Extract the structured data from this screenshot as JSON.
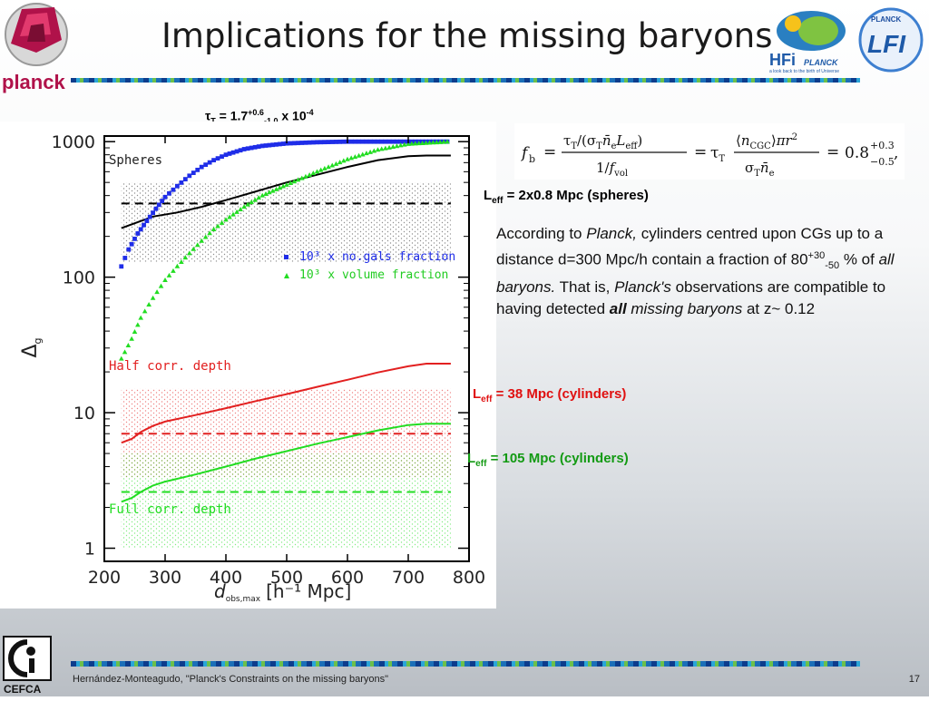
{
  "slide": {
    "title": "Implications for the missing baryons",
    "footer": "Hernández-Monteagudo, \"Planck's Constraints on the missing baryons\"",
    "page_number": "17"
  },
  "logos": {
    "planck": "planck",
    "hfi": "HFi",
    "hfi_sub": "PLANCK",
    "hfi_tagline": "a look back to the birth of Universe",
    "lfi": "LFI",
    "lfi_top": "PLANCK",
    "cefca": "CEFCA"
  },
  "tau": {
    "prefix": "τ",
    "prefix_sub": "T",
    "eq": " = 1.7",
    "sup": "+0.6",
    "sub": "-1.0",
    "suffix": " x 10",
    "exp": "-4"
  },
  "formula": {
    "lhs": "f",
    "lhs_sub": "b",
    "result": "0.8",
    "result_sup": "+0.3",
    "result_sub": "−0.5"
  },
  "labels": {
    "leff_spheres": {
      "L": "L",
      "sub": "eff",
      "text": " = 2x0.8 Mpc (spheres)"
    },
    "leff_half": {
      "L": "L",
      "sub": "eff",
      "text": " = 38 Mpc (cylinders)"
    },
    "leff_full": {
      "L": "L",
      "sub": "eff",
      "text": " = 105 Mpc (cylinders)"
    }
  },
  "paragraph": {
    "t1": "According to ",
    "t2": "Planck,",
    "t3": " cylinders centred upon CGs up to a distance d=300 Mpc/h contain a fraction of 80",
    "sup": "+30",
    "sub": "-50",
    "t4": " % of ",
    "t5": "all baryons.",
    "t6": " That is, ",
    "t7": "Planck's",
    "t8": " observations are compatible to having detected ",
    "t9": "all",
    "t10": " missing baryons",
    "t11": " at z~ 0.12"
  },
  "chart_data": {
    "type": "line",
    "ylabel": "Δ",
    "ylabel_sub": "g",
    "xlabel_d": "d",
    "xlabel_sub": "obs,max",
    "xlabel_unit": "[h⁻¹ Mpc]",
    "xlim": [
      200,
      800
    ],
    "ylim": [
      0.8,
      1100
    ],
    "y_scale": "log",
    "x_ticks": [
      200,
      300,
      400,
      500,
      600,
      700,
      800
    ],
    "y_ticks": [
      {
        "v": 1,
        "label": "1"
      },
      {
        "v": 10,
        "label": "10"
      },
      {
        "v": 100,
        "label": "100"
      },
      {
        "v": 1000,
        "label": "1000"
      }
    ],
    "annotations": {
      "spheres": "Spheres",
      "half": "Half corr. depth",
      "full": "Full corr. depth",
      "legend_blue": "10³ x no.gals fraction",
      "legend_green": "10³ x volume fraction"
    },
    "colors": {
      "blue": "#1f2de8",
      "green": "#22dd22",
      "red": "#e22020",
      "black": "#000000"
    },
    "bands": [
      {
        "name": "spheres-band",
        "ymin": 130,
        "ymax": 500,
        "dash": 350,
        "color": "#000000"
      },
      {
        "name": "half-band",
        "ymin": 3.3,
        "ymax": 15,
        "dash": 7.0,
        "color": "#e22020"
      },
      {
        "name": "full-band",
        "ymin": 1.0,
        "ymax": 5.0,
        "dash": 2.6,
        "color": "#22dd22"
      }
    ],
    "series": [
      {
        "key": "black",
        "style": "line",
        "color": "#000000",
        "x": [
          228,
          250,
          280,
          320,
          360,
          400,
          450,
          500,
          550,
          600,
          650,
          700,
          730,
          770
        ],
        "y": [
          230,
          250,
          280,
          300,
          330,
          370,
          430,
          500,
          570,
          650,
          730,
          780,
          790,
          790
        ]
      },
      {
        "key": "red",
        "style": "line",
        "color": "#e22020",
        "x": [
          228,
          245,
          260,
          280,
          300,
          350,
          400,
          450,
          500,
          550,
          600,
          650,
          700,
          730,
          770
        ],
        "y": [
          6.0,
          6.4,
          7.2,
          8.0,
          8.6,
          9.6,
          10.8,
          12.2,
          13.7,
          15.5,
          17.5,
          19.8,
          22.0,
          23.0,
          23.0
        ]
      },
      {
        "key": "green",
        "style": "line",
        "color": "#22dd22",
        "x": [
          228,
          245,
          260,
          280,
          300,
          350,
          400,
          450,
          500,
          550,
          600,
          650,
          700,
          730,
          770
        ],
        "y": [
          2.2,
          2.35,
          2.6,
          2.9,
          3.1,
          3.5,
          4.0,
          4.6,
          5.2,
          5.9,
          6.6,
          7.4,
          8.1,
          8.3,
          8.3
        ]
      },
      {
        "key": "blue",
        "style": "markers",
        "color": "#1f2de8",
        "x": [
          228,
          240,
          255,
          270,
          285,
          300,
          320,
          340,
          360,
          380,
          400,
          430,
          460,
          500,
          550,
          600,
          650,
          700,
          770
        ],
        "y": [
          120,
          160,
          210,
          260,
          320,
          390,
          470,
          560,
          650,
          730,
          800,
          880,
          930,
          970,
          990,
          1000,
          1000,
          1000,
          1000
        ]
      },
      {
        "key": "green-tri",
        "style": "markers",
        "color": "#22dd22",
        "x": [
          228,
          245,
          260,
          280,
          300,
          320,
          340,
          360,
          380,
          400,
          430,
          460,
          500,
          550,
          600,
          650,
          700,
          770
        ],
        "y": [
          25,
          35,
          50,
          70,
          95,
          120,
          150,
          185,
          225,
          265,
          330,
          400,
          480,
          600,
          740,
          870,
          960,
          1000
        ]
      }
    ]
  }
}
